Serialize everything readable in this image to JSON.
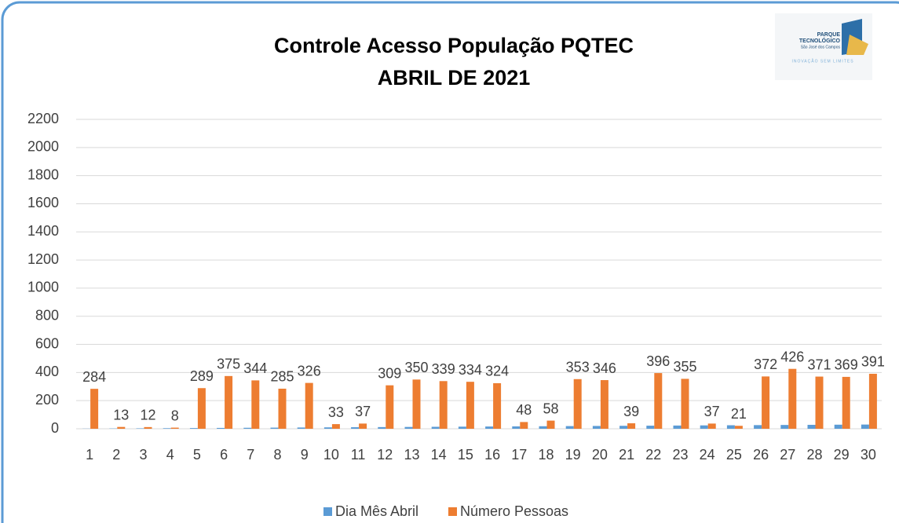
{
  "chart_data": {
    "type": "bar",
    "title": [
      "Controle Acesso População PQTEC",
      "ABRIL DE 2021"
    ],
    "logo": [
      "PARQUE",
      "TECNOLÓGICO",
      "São José dos Campos",
      "INOVAÇÃO SEM LIMITES"
    ],
    "categories": [
      "1",
      "2",
      "3",
      "4",
      "5",
      "6",
      "7",
      "8",
      "9",
      "10",
      "11",
      "12",
      "13",
      "14",
      "15",
      "16",
      "17",
      "18",
      "19",
      "20",
      "21",
      "22",
      "23",
      "24",
      "25",
      "26",
      "27",
      "28",
      "29",
      "30"
    ],
    "series": [
      {
        "name": "Dia Mês Abril",
        "color": "#5b9bd5",
        "values": [
          1,
          2,
          3,
          4,
          5,
          6,
          7,
          8,
          9,
          10,
          11,
          12,
          13,
          14,
          15,
          16,
          17,
          18,
          19,
          20,
          21,
          22,
          23,
          24,
          25,
          26,
          27,
          28,
          29,
          30
        ]
      },
      {
        "name": "Número Pessoas",
        "color": "#ed7d31",
        "values": [
          284,
          13,
          12,
          8,
          289,
          375,
          344,
          285,
          326,
          33,
          37,
          309,
          350,
          339,
          334,
          324,
          48,
          58,
          353,
          346,
          39,
          396,
          355,
          37,
          21,
          372,
          426,
          371,
          369,
          391
        ],
        "data_labels": true
      }
    ],
    "ylim": [
      0,
      2200
    ],
    "yticks": [
      0,
      200,
      400,
      600,
      800,
      1000,
      1200,
      1400,
      1600,
      1800,
      2000,
      2200
    ],
    "grid": true,
    "legend": "bottom"
  }
}
